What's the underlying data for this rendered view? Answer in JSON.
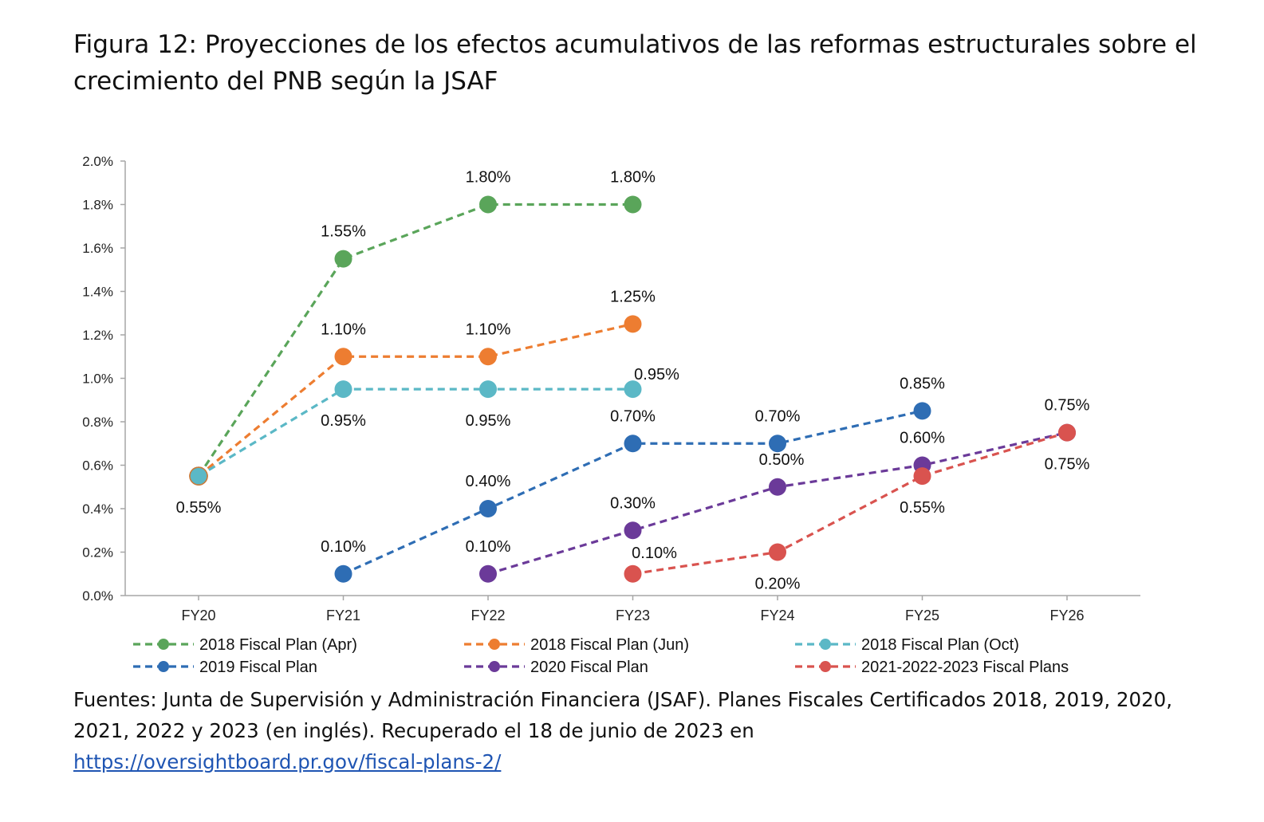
{
  "figure": {
    "title": "Figura 12: Proyecciones de los efectos acumulativos de las reformas estructurales sobre el crecimiento del PNB según la JSAF",
    "sources_text": "Fuentes: Junta de Supervisión y Administración Financiera (JSAF). Planes Fiscales Certificados 2018, 2019, 2020, 2021, 2022 y 2023 (en inglés). Recuperado el 18 de junio de 2023 en",
    "sources_link": "https://oversightboard.pr.gov/fiscal-plans-2/"
  },
  "chart_data": {
    "type": "line",
    "title": "",
    "xlabel": "",
    "ylabel": "",
    "categories": [
      "FY20",
      "FY21",
      "FY22",
      "FY23",
      "FY24",
      "FY25",
      "FY26"
    ],
    "y_ticks": [
      "0.0%",
      "0.2%",
      "0.4%",
      "0.6%",
      "0.8%",
      "1.0%",
      "1.2%",
      "1.4%",
      "1.6%",
      "1.8%",
      "2.0%"
    ],
    "ylim": [
      0,
      2.0
    ],
    "grid": false,
    "legend_position": "bottom",
    "series": [
      {
        "name": "2018 Fiscal Plan (Apr)",
        "color": "#5aa55a",
        "values": [
          0.55,
          1.55,
          1.8,
          1.8,
          null,
          null,
          null
        ],
        "labels": [
          null,
          "1.55%",
          "1.80%",
          "1.80%",
          null,
          null,
          null
        ],
        "label_position": "above"
      },
      {
        "name": "2018 Fiscal Plan (Jun)",
        "color": "#ed7d31",
        "values": [
          0.55,
          1.1,
          1.1,
          1.25,
          null,
          null,
          null
        ],
        "labels": [
          null,
          "1.10%",
          "1.10%",
          "1.25%",
          null,
          null,
          null
        ],
        "label_position": "above"
      },
      {
        "name": "2018 Fiscal Plan (Oct)",
        "color": "#5bb8c6",
        "values": [
          0.55,
          0.95,
          0.95,
          0.95,
          null,
          null,
          null
        ],
        "labels": [
          "0.55%",
          "0.95%",
          "0.95%",
          "0.95%",
          null,
          null,
          null
        ],
        "label_position": "below"
      },
      {
        "name": "2019 Fiscal Plan",
        "color": "#2e6db4",
        "values": [
          null,
          0.1,
          0.4,
          0.7,
          0.7,
          0.85,
          null
        ],
        "labels": [
          null,
          "0.10%",
          "0.40%",
          "0.70%",
          "0.70%",
          "0.85%",
          null
        ],
        "label_position": "above"
      },
      {
        "name": "2020 Fiscal Plan",
        "color": "#6b3a99",
        "values": [
          null,
          null,
          0.1,
          0.3,
          0.5,
          0.6,
          0.75
        ],
        "labels": [
          null,
          null,
          "0.10%",
          "0.30%",
          "0.50%",
          "0.60%",
          "0.75%"
        ],
        "label_position": "above"
      },
      {
        "name": "2021-2022-2023 Fiscal Plans",
        "color": "#d9534f",
        "values": [
          null,
          null,
          null,
          0.1,
          0.2,
          0.55,
          0.75
        ],
        "labels": [
          null,
          null,
          null,
          "0.10%",
          "0.20%",
          "0.55%",
          "0.75%"
        ],
        "label_position": "mixed"
      }
    ]
  }
}
